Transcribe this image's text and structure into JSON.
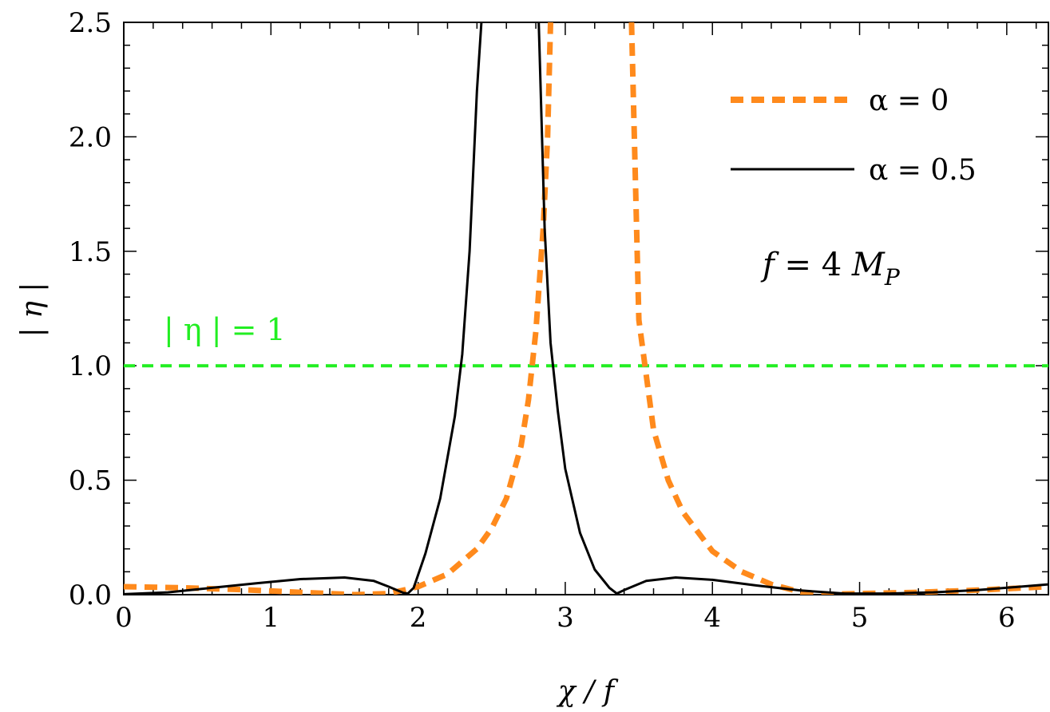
{
  "chart_data": {
    "type": "line",
    "xlabel": "χ / f",
    "ylabel": "| η |",
    "xlim": [
      0,
      6.283
    ],
    "ylim": [
      0,
      2.5
    ],
    "xticks": [
      "0",
      "1",
      "2",
      "3",
      "4",
      "5",
      "6"
    ],
    "yticks": [
      "0.0",
      "0.5",
      "1.0",
      "1.5",
      "2.0",
      "2.5"
    ],
    "grid": false,
    "legend_position": "top-right",
    "annotation": {
      "symbol": "f",
      "equals": " = 4 ",
      "unit": "M",
      "unit_sub": "P"
    },
    "reference_line": {
      "y": 1.0,
      "label": "| η | = 1",
      "color": "#22ee22",
      "style": "dashed"
    },
    "series": [
      {
        "name": "α = 0",
        "color": "#ff8a1c",
        "style": "dashed",
        "x": [
          0,
          0.4,
          0.8,
          1.2,
          1.5,
          1.57,
          1.8,
          2.0,
          2.2,
          2.4,
          2.5,
          2.6,
          2.7,
          2.75,
          2.8,
          2.85,
          2.88,
          2.9,
          2.92,
          2.95,
          3.0,
          3.05,
          3.1,
          3.15,
          3.2,
          3.25,
          3.3,
          3.35,
          3.4,
          3.45,
          3.5,
          3.6,
          3.7,
          3.8,
          4.0,
          4.2,
          4.4,
          4.6,
          4.71,
          5.0,
          5.4,
          5.8,
          6.283
        ],
        "y": [
          0.035,
          0.03,
          0.022,
          0.01,
          0.002,
          0,
          0.005,
          0.035,
          0.09,
          0.2,
          0.29,
          0.42,
          0.65,
          0.85,
          1.15,
          1.6,
          2.0,
          2.5,
          null,
          null,
          null,
          null,
          null,
          null,
          null,
          null,
          null,
          null,
          null,
          2.5,
          1.2,
          0.72,
          0.5,
          0.36,
          0.19,
          0.1,
          0.045,
          0.012,
          0,
          0.005,
          0.01,
          0.02,
          0.035
        ]
      },
      {
        "name": "α = 0.5",
        "color": "#000000",
        "style": "solid",
        "x": [
          0,
          0.3,
          0.6,
          0.9,
          1.2,
          1.5,
          1.7,
          1.8,
          1.9,
          1.93,
          1.97,
          2.05,
          2.15,
          2.25,
          2.3,
          2.35,
          2.4,
          2.43,
          2.5,
          2.6,
          2.7,
          2.8,
          2.82,
          2.86,
          2.9,
          2.95,
          3.0,
          3.1,
          3.2,
          3.3,
          3.35,
          3.4,
          3.55,
          3.75,
          4.0,
          4.3,
          4.6,
          4.9,
          5.2,
          5.5,
          5.8,
          6.283
        ],
        "y": [
          0.002,
          0.01,
          0.03,
          0.05,
          0.068,
          0.075,
          0.06,
          0.035,
          0.008,
          0.005,
          0.03,
          0.18,
          0.42,
          0.78,
          1.05,
          1.5,
          2.2,
          2.5,
          null,
          null,
          null,
          null,
          2.5,
          1.6,
          1.1,
          0.8,
          0.55,
          0.27,
          0.11,
          0.03,
          0.005,
          0.02,
          0.06,
          0.075,
          0.065,
          0.04,
          0.018,
          0.005,
          0.005,
          0.01,
          0.02,
          0.045
        ]
      }
    ]
  }
}
